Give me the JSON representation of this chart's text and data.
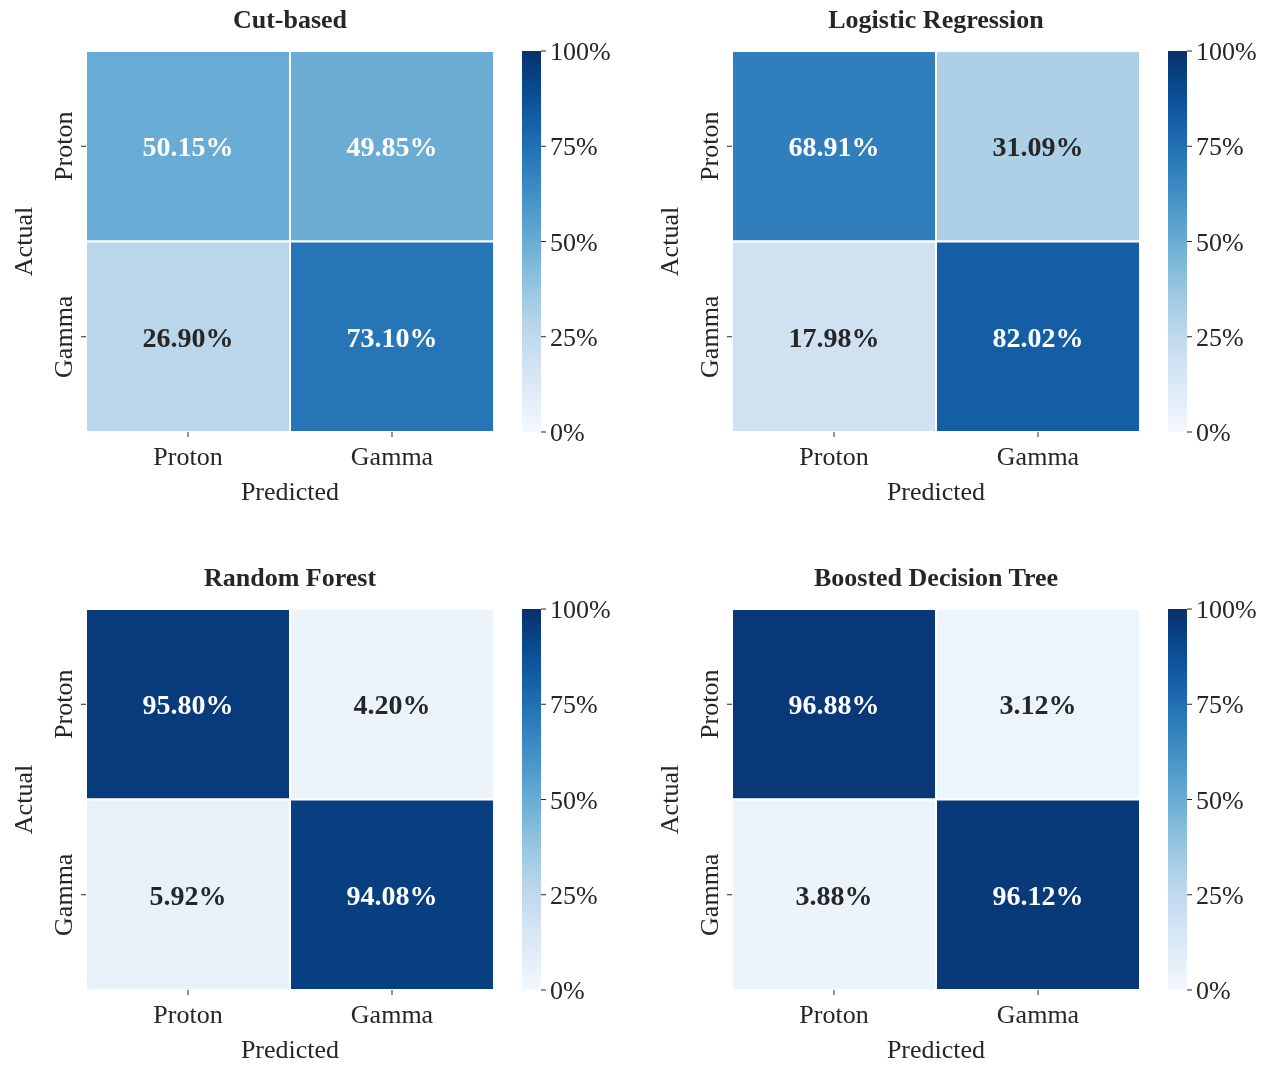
{
  "chart_data": [
    {
      "type": "heatmap",
      "title": "Cut-based",
      "xlabel": "Predicted",
      "ylabel": "Actual",
      "categories": [
        "Proton",
        "Gamma"
      ],
      "y_categories": [
        "Proton",
        "Gamma"
      ],
      "cells": [
        [
          50.15,
          49.85
        ],
        [
          26.9,
          73.1
        ]
      ],
      "cell_labels": [
        [
          "50.15%",
          "49.85%"
        ],
        [
          "26.90%",
          "73.10%"
        ]
      ],
      "clim": [
        0,
        100
      ],
      "cticks": [
        {
          "value": 0,
          "label": "0%"
        },
        {
          "value": 25,
          "label": "25%"
        },
        {
          "value": 50,
          "label": "50%"
        },
        {
          "value": 75,
          "label": "75%"
        },
        {
          "value": 100,
          "label": "100%"
        }
      ]
    },
    {
      "type": "heatmap",
      "title": "Logistic Regression",
      "xlabel": "Predicted",
      "ylabel": "Actual",
      "categories": [
        "Proton",
        "Gamma"
      ],
      "y_categories": [
        "Proton",
        "Gamma"
      ],
      "cells": [
        [
          68.91,
          31.09
        ],
        [
          17.98,
          82.02
        ]
      ],
      "cell_labels": [
        [
          "68.91%",
          "31.09%"
        ],
        [
          "17.98%",
          "82.02%"
        ]
      ],
      "clim": [
        0,
        100
      ],
      "cticks": [
        {
          "value": 0,
          "label": "0%"
        },
        {
          "value": 25,
          "label": "25%"
        },
        {
          "value": 50,
          "label": "50%"
        },
        {
          "value": 75,
          "label": "75%"
        },
        {
          "value": 100,
          "label": "100%"
        }
      ]
    },
    {
      "type": "heatmap",
      "title": "Random Forest",
      "xlabel": "Predicted",
      "ylabel": "Actual",
      "categories": [
        "Proton",
        "Gamma"
      ],
      "y_categories": [
        "Proton",
        "Gamma"
      ],
      "cells": [
        [
          95.8,
          4.2
        ],
        [
          5.92,
          94.08
        ]
      ],
      "cell_labels": [
        [
          "95.80%",
          "4.20%"
        ],
        [
          "5.92%",
          "94.08%"
        ]
      ],
      "clim": [
        0,
        100
      ],
      "cticks": [
        {
          "value": 0,
          "label": "0%"
        },
        {
          "value": 25,
          "label": "25%"
        },
        {
          "value": 50,
          "label": "50%"
        },
        {
          "value": 75,
          "label": "75%"
        },
        {
          "value": 100,
          "label": "100%"
        }
      ]
    },
    {
      "type": "heatmap",
      "title": "Boosted Decision Tree",
      "xlabel": "Predicted",
      "ylabel": "Actual",
      "categories": [
        "Proton",
        "Gamma"
      ],
      "y_categories": [
        "Proton",
        "Gamma"
      ],
      "cells": [
        [
          96.88,
          3.12
        ],
        [
          3.88,
          96.12
        ]
      ],
      "cell_labels": [
        [
          "96.88%",
          "3.12%"
        ],
        [
          "3.88%",
          "96.12%"
        ]
      ],
      "clim": [
        0,
        100
      ],
      "cticks": [
        {
          "value": 0,
          "label": "0%"
        },
        {
          "value": 25,
          "label": "25%"
        },
        {
          "value": 50,
          "label": "50%"
        },
        {
          "value": 75,
          "label": "75%"
        },
        {
          "value": 100,
          "label": "100%"
        }
      ]
    }
  ]
}
